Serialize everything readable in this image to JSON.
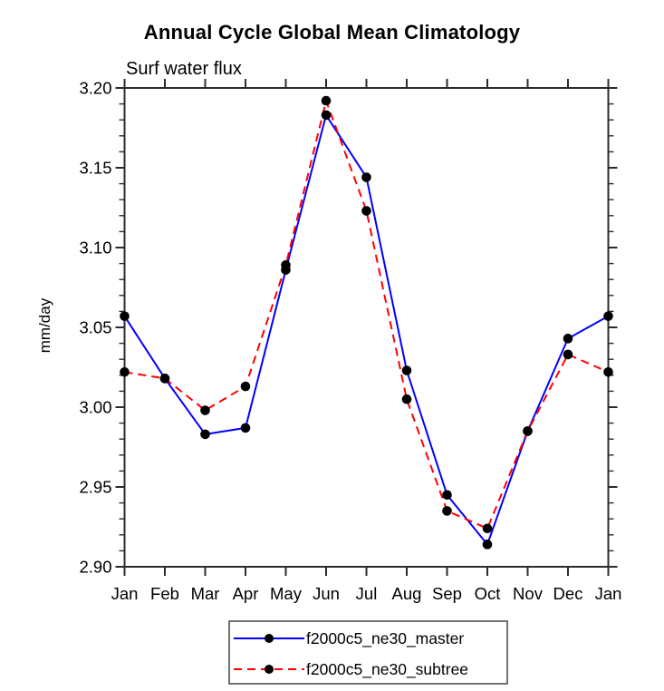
{
  "colors": {
    "axis": "#2b2b2b",
    "text": "#000000",
    "background": "#ffffff",
    "legend_border": "#444444"
  },
  "chart_data": {
    "type": "line",
    "title": "Annual Cycle Global Mean Climatology",
    "subtitle": "Surf water flux",
    "ylabel": "mm/day",
    "xlabel": "",
    "categories": [
      "Jan",
      "Feb",
      "Mar",
      "Apr",
      "May",
      "Jun",
      "Jul",
      "Aug",
      "Sep",
      "Oct",
      "Nov",
      "Dec",
      "Jan"
    ],
    "ylim": [
      2.9,
      3.2
    ],
    "ytick_major_step": 0.05,
    "ytick_minor_step": 0.01,
    "y_tick_labels": [
      "2.90",
      "2.95",
      "3.00",
      "3.05",
      "3.10",
      "3.15",
      "3.20"
    ],
    "grid": false,
    "legend_position": "bottom-center",
    "series": [
      {
        "name": "f2000c5_ne30_master",
        "color": "#0000ff",
        "dash": "solid",
        "marker": "circle",
        "marker_color": "#000000",
        "values": [
          3.057,
          3.018,
          2.983,
          2.987,
          3.086,
          3.183,
          3.144,
          3.023,
          2.945,
          2.914,
          2.985,
          3.043,
          3.057
        ]
      },
      {
        "name": "f2000c5_ne30_subtree",
        "color": "#ff0000",
        "dash": "dashed",
        "marker": "circle",
        "marker_color": "#000000",
        "values": [
          3.022,
          3.018,
          2.998,
          3.013,
          3.089,
          3.192,
          3.123,
          3.005,
          2.935,
          2.924,
          2.985,
          3.033,
          3.022
        ]
      }
    ]
  }
}
